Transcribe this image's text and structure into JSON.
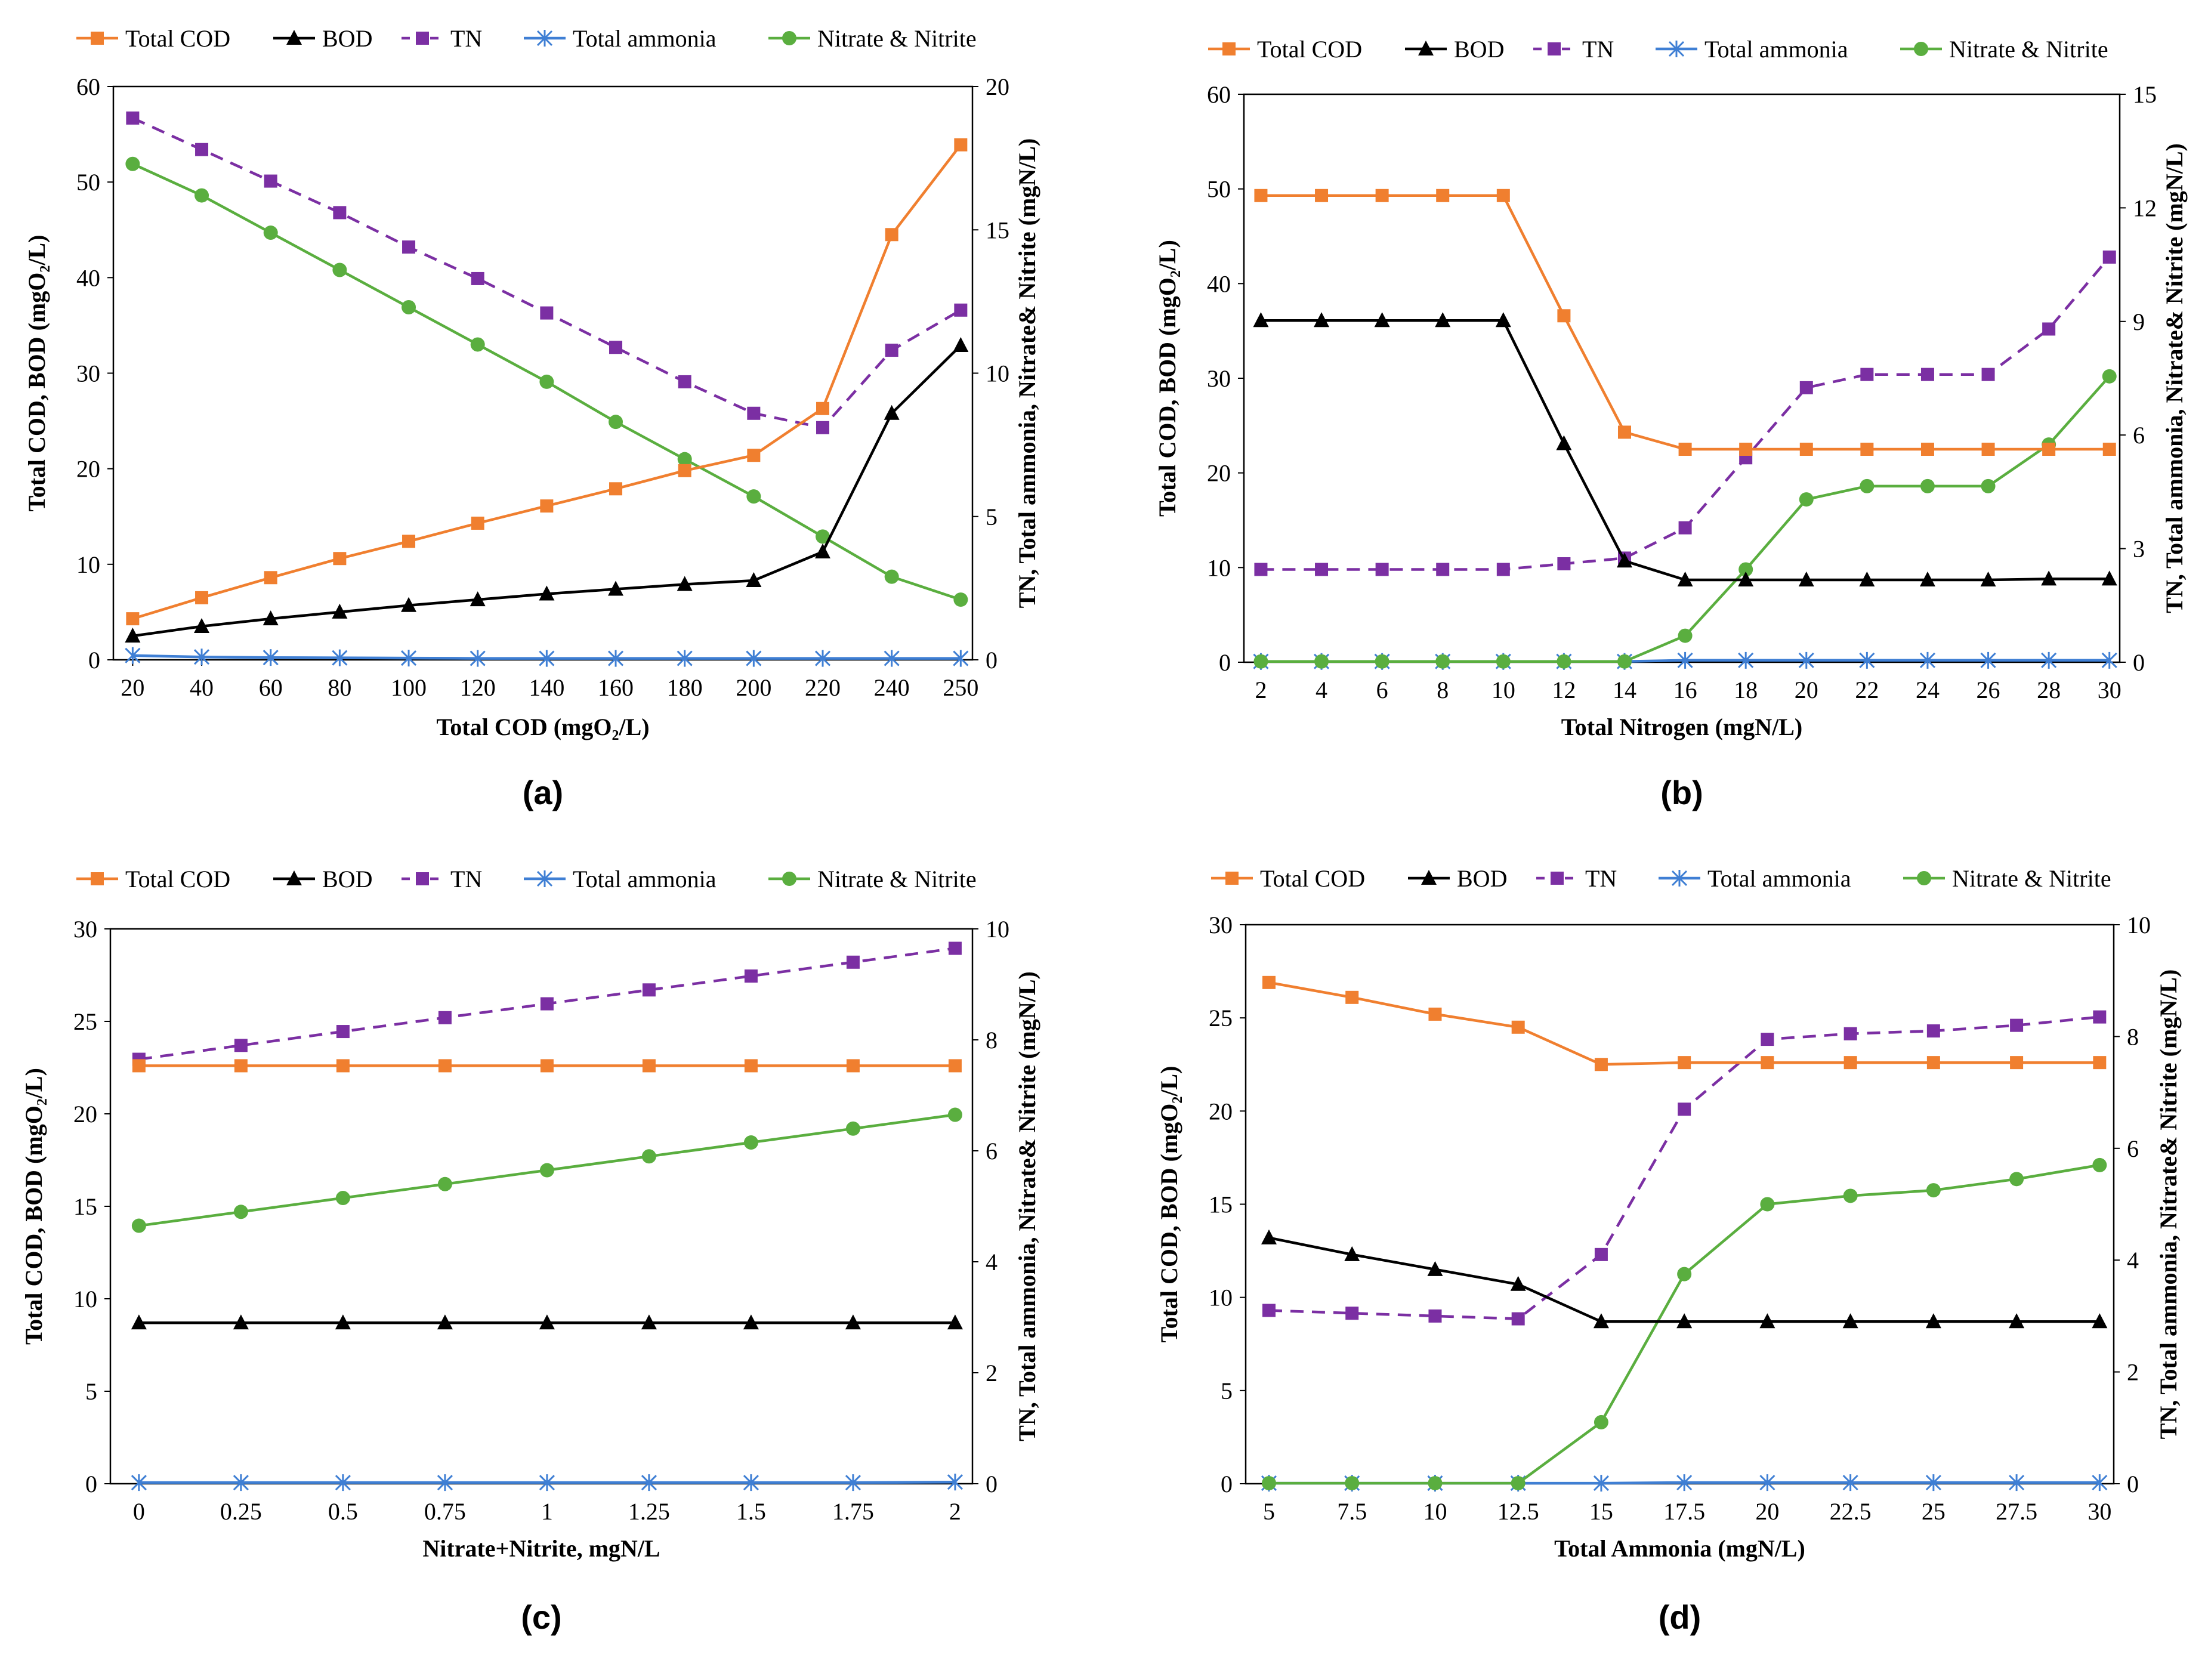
{
  "figure": {
    "panels": [
      "(a)",
      "(b)",
      "(c)",
      "(d)"
    ],
    "colors": {
      "Total COD": "#F07F2F",
      "BOD": "#000000",
      "TN": "#7B2FA3",
      "Total ammonia": "#3F7FD4",
      "Nitrate & Nitrite": "#5AAE3F"
    }
  },
  "chart_data": [
    {
      "type": "line",
      "panel_label": "(a)",
      "legend": [
        "Total COD",
        "BOD",
        "TN",
        "Total ammonia",
        "Nitrate & Nitrite"
      ],
      "xlabel": "Total COD (mgO₂/L)",
      "ylabel_left": "Total COD, BOD (mgO₂/L)",
      "ylabel_right": "TN, Total ammonia, Nitrate& Nitrite (mgN/L)",
      "categories": [
        "20",
        "40",
        "60",
        "80",
        "100",
        "120",
        "140",
        "160",
        "180",
        "200",
        "220",
        "240",
        "250"
      ],
      "y_left": {
        "min": 0,
        "max": 60,
        "ticks": [
          0,
          10,
          20,
          30,
          40,
          50,
          60
        ]
      },
      "y_right": {
        "min": 0,
        "max": 20,
        "ticks": [
          0,
          5,
          10,
          15,
          20
        ]
      },
      "series": [
        {
          "name": "Total COD",
          "axis": "left",
          "values": [
            4.3,
            6.5,
            8.6,
            10.6,
            12.4,
            14.3,
            16.1,
            17.9,
            19.8,
            21.4,
            26.3,
            44.5,
            53.9
          ]
        },
        {
          "name": "BOD",
          "axis": "left",
          "values": [
            2.5,
            3.5,
            4.3,
            5.0,
            5.7,
            6.3,
            6.9,
            7.4,
            7.9,
            8.3,
            11.3,
            25.8,
            32.9
          ]
        },
        {
          "name": "TN",
          "axis": "right",
          "values": [
            18.9,
            17.8,
            16.7,
            15.6,
            14.4,
            13.3,
            12.1,
            10.9,
            9.7,
            8.6,
            8.1,
            10.8,
            12.2
          ]
        },
        {
          "name": "Total ammonia",
          "axis": "right",
          "values": [
            0.15,
            0.1,
            0.08,
            0.07,
            0.06,
            0.05,
            0.05,
            0.05,
            0.05,
            0.05,
            0.05,
            0.05,
            0.05
          ]
        },
        {
          "name": "Nitrate & Nitrite",
          "axis": "right",
          "values": [
            17.3,
            16.2,
            14.9,
            13.6,
            12.3,
            11.0,
            9.7,
            8.3,
            7.0,
            5.7,
            4.3,
            2.9,
            2.1
          ]
        }
      ]
    },
    {
      "type": "line",
      "panel_label": "(b)",
      "legend": [
        "Total COD",
        "BOD",
        "TN",
        "Total ammonia",
        "Nitrate & Nitrite"
      ],
      "xlabel": "Total Nitrogen (mgN/L)",
      "ylabel_left": "Total COD, BOD (mgO₂/L)",
      "ylabel_right": "TN, Total ammonia, Nitrate& Nitrite (mgN/L)",
      "categories": [
        "2",
        "4",
        "6",
        "8",
        "10",
        "12",
        "14",
        "16",
        "18",
        "20",
        "22",
        "24",
        "26",
        "28",
        "30"
      ],
      "y_left": {
        "min": 0,
        "max": 60,
        "ticks": [
          0,
          10,
          20,
          30,
          40,
          50,
          60
        ]
      },
      "y_right": {
        "min": 0,
        "max": 15,
        "ticks": [
          0,
          3,
          6,
          9,
          12,
          15
        ]
      },
      "series": [
        {
          "name": "Total COD",
          "axis": "left",
          "values": [
            49.3,
            49.3,
            49.3,
            49.3,
            49.3,
            36.6,
            24.3,
            22.5,
            22.5,
            22.5,
            22.5,
            22.5,
            22.5,
            22.5,
            22.5
          ]
        },
        {
          "name": "BOD",
          "axis": "left",
          "values": [
            36.1,
            36.1,
            36.1,
            36.1,
            36.1,
            23.1,
            10.7,
            8.7,
            8.7,
            8.7,
            8.7,
            8.7,
            8.7,
            8.8,
            8.8
          ]
        },
        {
          "name": "TN",
          "axis": "right",
          "values": [
            2.45,
            2.45,
            2.45,
            2.45,
            2.45,
            2.6,
            2.75,
            3.55,
            5.4,
            7.25,
            7.6,
            7.6,
            7.6,
            8.8,
            10.7
          ]
        },
        {
          "name": "Total ammonia",
          "axis": "right",
          "values": [
            0.02,
            0.02,
            0.02,
            0.02,
            0.02,
            0.02,
            0.02,
            0.05,
            0.05,
            0.05,
            0.05,
            0.05,
            0.05,
            0.05,
            0.05
          ]
        },
        {
          "name": "Nitrate & Nitrite",
          "axis": "right",
          "values": [
            0.02,
            0.02,
            0.02,
            0.02,
            0.02,
            0.02,
            0.02,
            0.7,
            2.45,
            4.3,
            4.65,
            4.65,
            4.65,
            5.75,
            7.55
          ]
        }
      ]
    },
    {
      "type": "line",
      "panel_label": "(c)",
      "legend": [
        "Total COD",
        "BOD",
        "TN",
        "Total ammonia",
        "Nitrate & Nitrite"
      ],
      "xlabel": "Nitrate+Nitrite, mgN/L",
      "ylabel_left": "Total COD, BOD (mgO₂/L)",
      "ylabel_right": "TN, Total ammonia, Nitrate& Nitrite (mgN/L)",
      "categories": [
        "0",
        "0.25",
        "0.5",
        "0.75",
        "1",
        "1.25",
        "1.5",
        "1.75",
        "2"
      ],
      "y_left": {
        "min": 0,
        "max": 30,
        "ticks": [
          0,
          5,
          10,
          15,
          20,
          25,
          30
        ]
      },
      "y_right": {
        "min": 0,
        "max": 10,
        "ticks": [
          0,
          2,
          4,
          6,
          8,
          10
        ]
      },
      "series": [
        {
          "name": "Total COD",
          "axis": "left",
          "values": [
            22.6,
            22.6,
            22.6,
            22.6,
            22.6,
            22.6,
            22.6,
            22.6,
            22.6
          ]
        },
        {
          "name": "BOD",
          "axis": "left",
          "values": [
            8.7,
            8.7,
            8.7,
            8.7,
            8.7,
            8.7,
            8.7,
            8.7,
            8.7
          ]
        },
        {
          "name": "TN",
          "axis": "right",
          "values": [
            7.65,
            7.9,
            8.15,
            8.4,
            8.65,
            8.9,
            9.15,
            9.4,
            9.65
          ]
        },
        {
          "name": "Total ammonia",
          "axis": "right",
          "values": [
            0.02,
            0.02,
            0.02,
            0.02,
            0.02,
            0.02,
            0.02,
            0.02,
            0.03
          ]
        },
        {
          "name": "Nitrate & Nitrite",
          "axis": "right",
          "values": [
            4.65,
            4.9,
            5.15,
            5.4,
            5.65,
            5.9,
            6.15,
            6.4,
            6.65
          ]
        }
      ]
    },
    {
      "type": "line",
      "panel_label": "(d)",
      "legend": [
        "Total COD",
        "BOD",
        "TN",
        "Total ammonia",
        "Nitrate & Nitrite"
      ],
      "xlabel": "Total Ammonia (mgN/L)",
      "ylabel_left": "Total COD, BOD (mgO₂/L)",
      "ylabel_right": "TN, Total ammonia, Nitrate& Nitrite (mgN/L)",
      "categories": [
        "5",
        "7.5",
        "10",
        "12.5",
        "15",
        "17.5",
        "20",
        "22.5",
        "25",
        "27.5",
        "30"
      ],
      "y_left": {
        "min": 0,
        "max": 30,
        "ticks": [
          0,
          5,
          10,
          15,
          20,
          25,
          30
        ]
      },
      "y_right": {
        "min": 0,
        "max": 10,
        "ticks": [
          0,
          2,
          4,
          6,
          8,
          10
        ]
      },
      "series": [
        {
          "name": "Total COD",
          "axis": "left",
          "values": [
            26.9,
            26.1,
            25.2,
            24.5,
            22.5,
            22.6,
            22.6,
            22.6,
            22.6,
            22.6,
            22.6
          ]
        },
        {
          "name": "BOD",
          "axis": "left",
          "values": [
            13.2,
            12.3,
            11.5,
            10.7,
            8.7,
            8.7,
            8.7,
            8.7,
            8.7,
            8.7,
            8.7
          ]
        },
        {
          "name": "TN",
          "axis": "right",
          "values": [
            3.1,
            3.05,
            3.0,
            2.95,
            4.1,
            6.7,
            7.95,
            8.05,
            8.1,
            8.2,
            8.35
          ]
        },
        {
          "name": "Total ammonia",
          "axis": "right",
          "values": [
            0.01,
            0.01,
            0.01,
            0.01,
            0.01,
            0.02,
            0.02,
            0.02,
            0.02,
            0.02,
            0.02
          ]
        },
        {
          "name": "Nitrate & Nitrite",
          "axis": "right",
          "values": [
            0.01,
            0.01,
            0.01,
            0.01,
            1.1,
            3.75,
            5.0,
            5.15,
            5.25,
            5.45,
            5.7
          ]
        }
      ]
    }
  ]
}
